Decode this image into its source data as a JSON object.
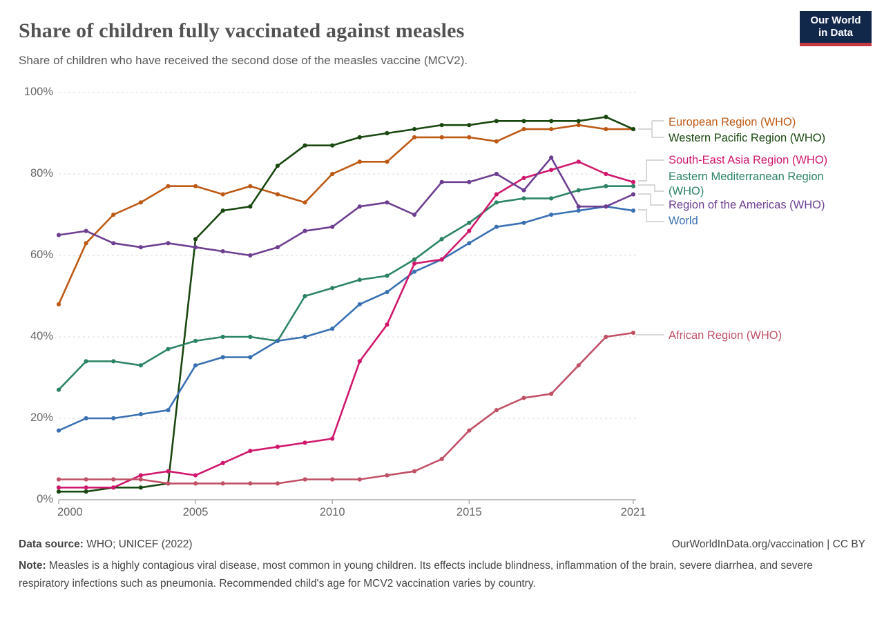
{
  "header": {
    "title": "Share of children fully vaccinated against measles",
    "subtitle": "Share of children who have received the second dose of the measles vaccine (MCV2).",
    "logo_line1": "Our World",
    "logo_line2": "in Data"
  },
  "chart_data": {
    "type": "line",
    "title": "Share of children fully vaccinated against measles",
    "x": [
      2000,
      2001,
      2002,
      2003,
      2004,
      2005,
      2006,
      2007,
      2008,
      2009,
      2010,
      2011,
      2012,
      2013,
      2014,
      2015,
      2016,
      2017,
      2018,
      2019,
      2020,
      2021
    ],
    "x_ticks": [
      2000,
      2005,
      2010,
      2015,
      2021
    ],
    "x_tick_labels": [
      "2000",
      "2005",
      "2010",
      "2015",
      "2021"
    ],
    "y_ticks": [
      0,
      20,
      40,
      60,
      80,
      100
    ],
    "y_tick_labels": [
      "0%",
      "20%",
      "40%",
      "60%",
      "80%",
      "100%"
    ],
    "ylim": [
      0,
      100
    ],
    "grid": true,
    "legend_position": "right",
    "series": [
      {
        "name": "European Region (WHO)",
        "color": "#BE5915",
        "values": [
          48,
          63,
          70,
          73,
          77,
          77,
          75,
          77,
          75,
          73,
          80,
          83,
          83,
          89,
          89,
          89,
          88,
          91,
          91,
          92,
          91,
          91
        ]
      },
      {
        "name": "Western Pacific Region (WHO)",
        "color": "#18470F",
        "values": [
          2,
          2,
          3,
          3,
          4,
          64,
          71,
          72,
          82,
          87,
          87,
          89,
          90,
          91,
          92,
          92,
          93,
          93,
          93,
          93,
          94,
          91
        ]
      },
      {
        "name": "South-East Asia Region (WHO)",
        "color": "#D0176C",
        "values": [
          3,
          3,
          3,
          6,
          7,
          6,
          9,
          12,
          13,
          14,
          15,
          34,
          43,
          58,
          59,
          66,
          75,
          79,
          81,
          83,
          80,
          78
        ]
      },
      {
        "name": "Eastern Mediterranean Region (WHO)",
        "color": "#2C8465",
        "values": [
          27,
          34,
          34,
          33,
          37,
          39,
          40,
          40,
          39,
          50,
          52,
          54,
          55,
          59,
          64,
          68,
          73,
          74,
          74,
          76,
          77,
          77
        ]
      },
      {
        "name": "Region of the Americas (WHO)",
        "color": "#6D3E91",
        "values": [
          65,
          66,
          63,
          62,
          63,
          62,
          61,
          60,
          62,
          66,
          67,
          72,
          73,
          70,
          78,
          78,
          80,
          76,
          84,
          72,
          72,
          75
        ]
      },
      {
        "name": "World",
        "color": "#3970B3",
        "values": [
          17,
          20,
          20,
          21,
          22,
          33,
          35,
          35,
          39,
          40,
          42,
          48,
          51,
          56,
          59,
          63,
          67,
          68,
          70,
          71,
          72,
          71
        ]
      },
      {
        "name": "African Region (WHO)",
        "color": "#C15065",
        "values": [
          5,
          5,
          5,
          5,
          4,
          4,
          4,
          4,
          4,
          5,
          5,
          5,
          6,
          7,
          10,
          17,
          22,
          25,
          26,
          33,
          40,
          41
        ]
      }
    ],
    "legend_labels": [
      "European Region (WHO)",
      "Western Pacific Region (WHO)",
      "South-East Asia Region (WHO)",
      "Eastern Mediterranean Region\n(WHO)",
      "Region of the Americas (WHO)",
      "World",
      "African Region (WHO)"
    ]
  },
  "footer": {
    "source_label": "Data source:",
    "source_value": " WHO; UNICEF (2022)",
    "attribution": "OurWorldInData.org/vaccination | CC BY",
    "note_label": "Note:",
    "note_text": " Measles is a highly contagious viral disease, most common in young children. Its effects include blindness, inflammation of the brain, severe diarrhea, and severe respiratory infections such as pneumonia. Recommended child's age for MCV2 vaccination varies by country."
  }
}
